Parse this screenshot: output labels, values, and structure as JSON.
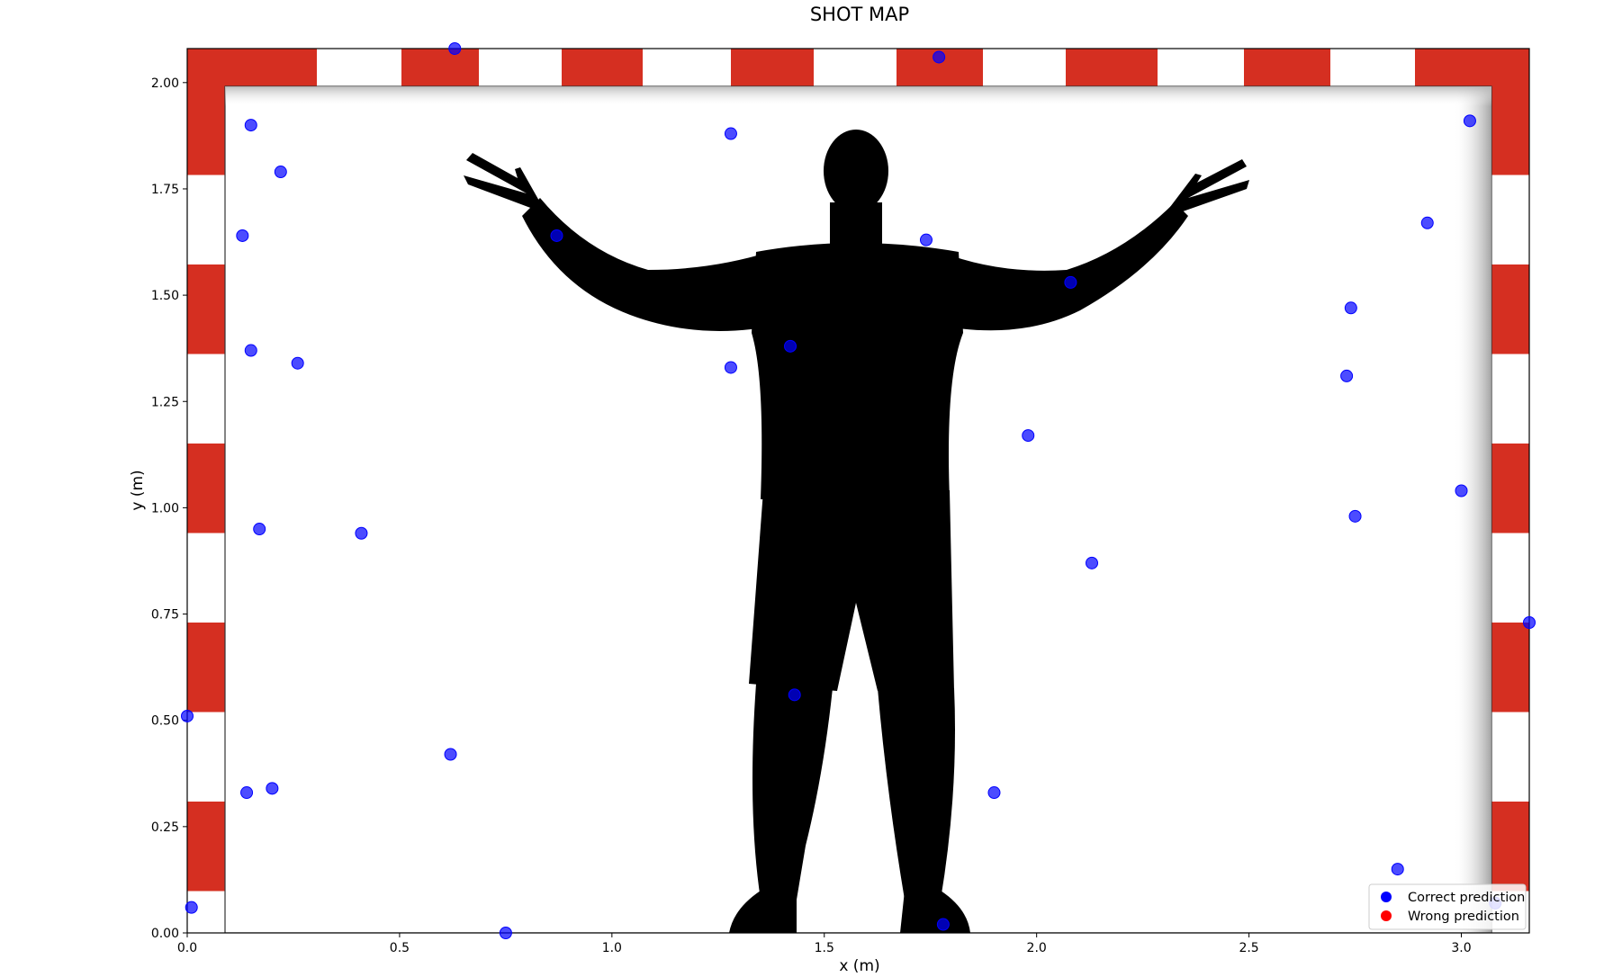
{
  "chart_data": {
    "type": "scatter",
    "title": "SHOT MAP",
    "xlabel": "x (m)",
    "ylabel": "y (m)",
    "xlim": [
      0,
      3.16
    ],
    "ylim": [
      0,
      2.08
    ],
    "xticks": [
      "0.0",
      "0.5",
      "1.0",
      "1.5",
      "2.0",
      "2.5",
      "3.0"
    ],
    "yticks": [
      "0.00",
      "0.25",
      "0.50",
      "0.75",
      "1.00",
      "1.25",
      "1.50",
      "1.75",
      "2.00"
    ],
    "grid": false,
    "legend_position": "bottom-right",
    "legend": [
      {
        "label": "Correct prediction",
        "color": "#0000ff"
      },
      {
        "label": "Wrong prediction",
        "color": "#ff0000"
      }
    ],
    "series": [
      {
        "name": "Correct prediction",
        "color": "#0000ff",
        "points": [
          {
            "x": 0.63,
            "y": 2.08
          },
          {
            "x": 1.77,
            "y": 2.06
          },
          {
            "x": 0.15,
            "y": 1.9
          },
          {
            "x": 1.28,
            "y": 1.88
          },
          {
            "x": 3.02,
            "y": 1.91
          },
          {
            "x": 0.22,
            "y": 1.79
          },
          {
            "x": 0.13,
            "y": 1.64
          },
          {
            "x": 0.87,
            "y": 1.64
          },
          {
            "x": 1.74,
            "y": 1.63
          },
          {
            "x": 2.92,
            "y": 1.67
          },
          {
            "x": 2.08,
            "y": 1.53
          },
          {
            "x": 2.74,
            "y": 1.47
          },
          {
            "x": 0.15,
            "y": 1.37
          },
          {
            "x": 0.26,
            "y": 1.34
          },
          {
            "x": 1.42,
            "y": 1.38
          },
          {
            "x": 1.28,
            "y": 1.33
          },
          {
            "x": 2.73,
            "y": 1.31
          },
          {
            "x": 1.98,
            "y": 1.17
          },
          {
            "x": 3.0,
            "y": 1.04
          },
          {
            "x": 0.17,
            "y": 0.95
          },
          {
            "x": 0.41,
            "y": 0.94
          },
          {
            "x": 2.75,
            "y": 0.98
          },
          {
            "x": 2.13,
            "y": 0.87
          },
          {
            "x": 3.16,
            "y": 0.73
          },
          {
            "x": 1.43,
            "y": 0.56
          },
          {
            "x": 0.0,
            "y": 0.51
          },
          {
            "x": 0.62,
            "y": 0.42
          },
          {
            "x": 0.14,
            "y": 0.33
          },
          {
            "x": 0.2,
            "y": 0.34
          },
          {
            "x": 1.9,
            "y": 0.33
          },
          {
            "x": 2.85,
            "y": 0.15
          },
          {
            "x": 0.01,
            "y": 0.06
          },
          {
            "x": 3.08,
            "y": 0.07
          },
          {
            "x": 0.75,
            "y": 0.0
          },
          {
            "x": 1.78,
            "y": 0.02
          }
        ]
      },
      {
        "name": "Wrong prediction",
        "color": "#ff0000",
        "points": []
      }
    ]
  }
}
